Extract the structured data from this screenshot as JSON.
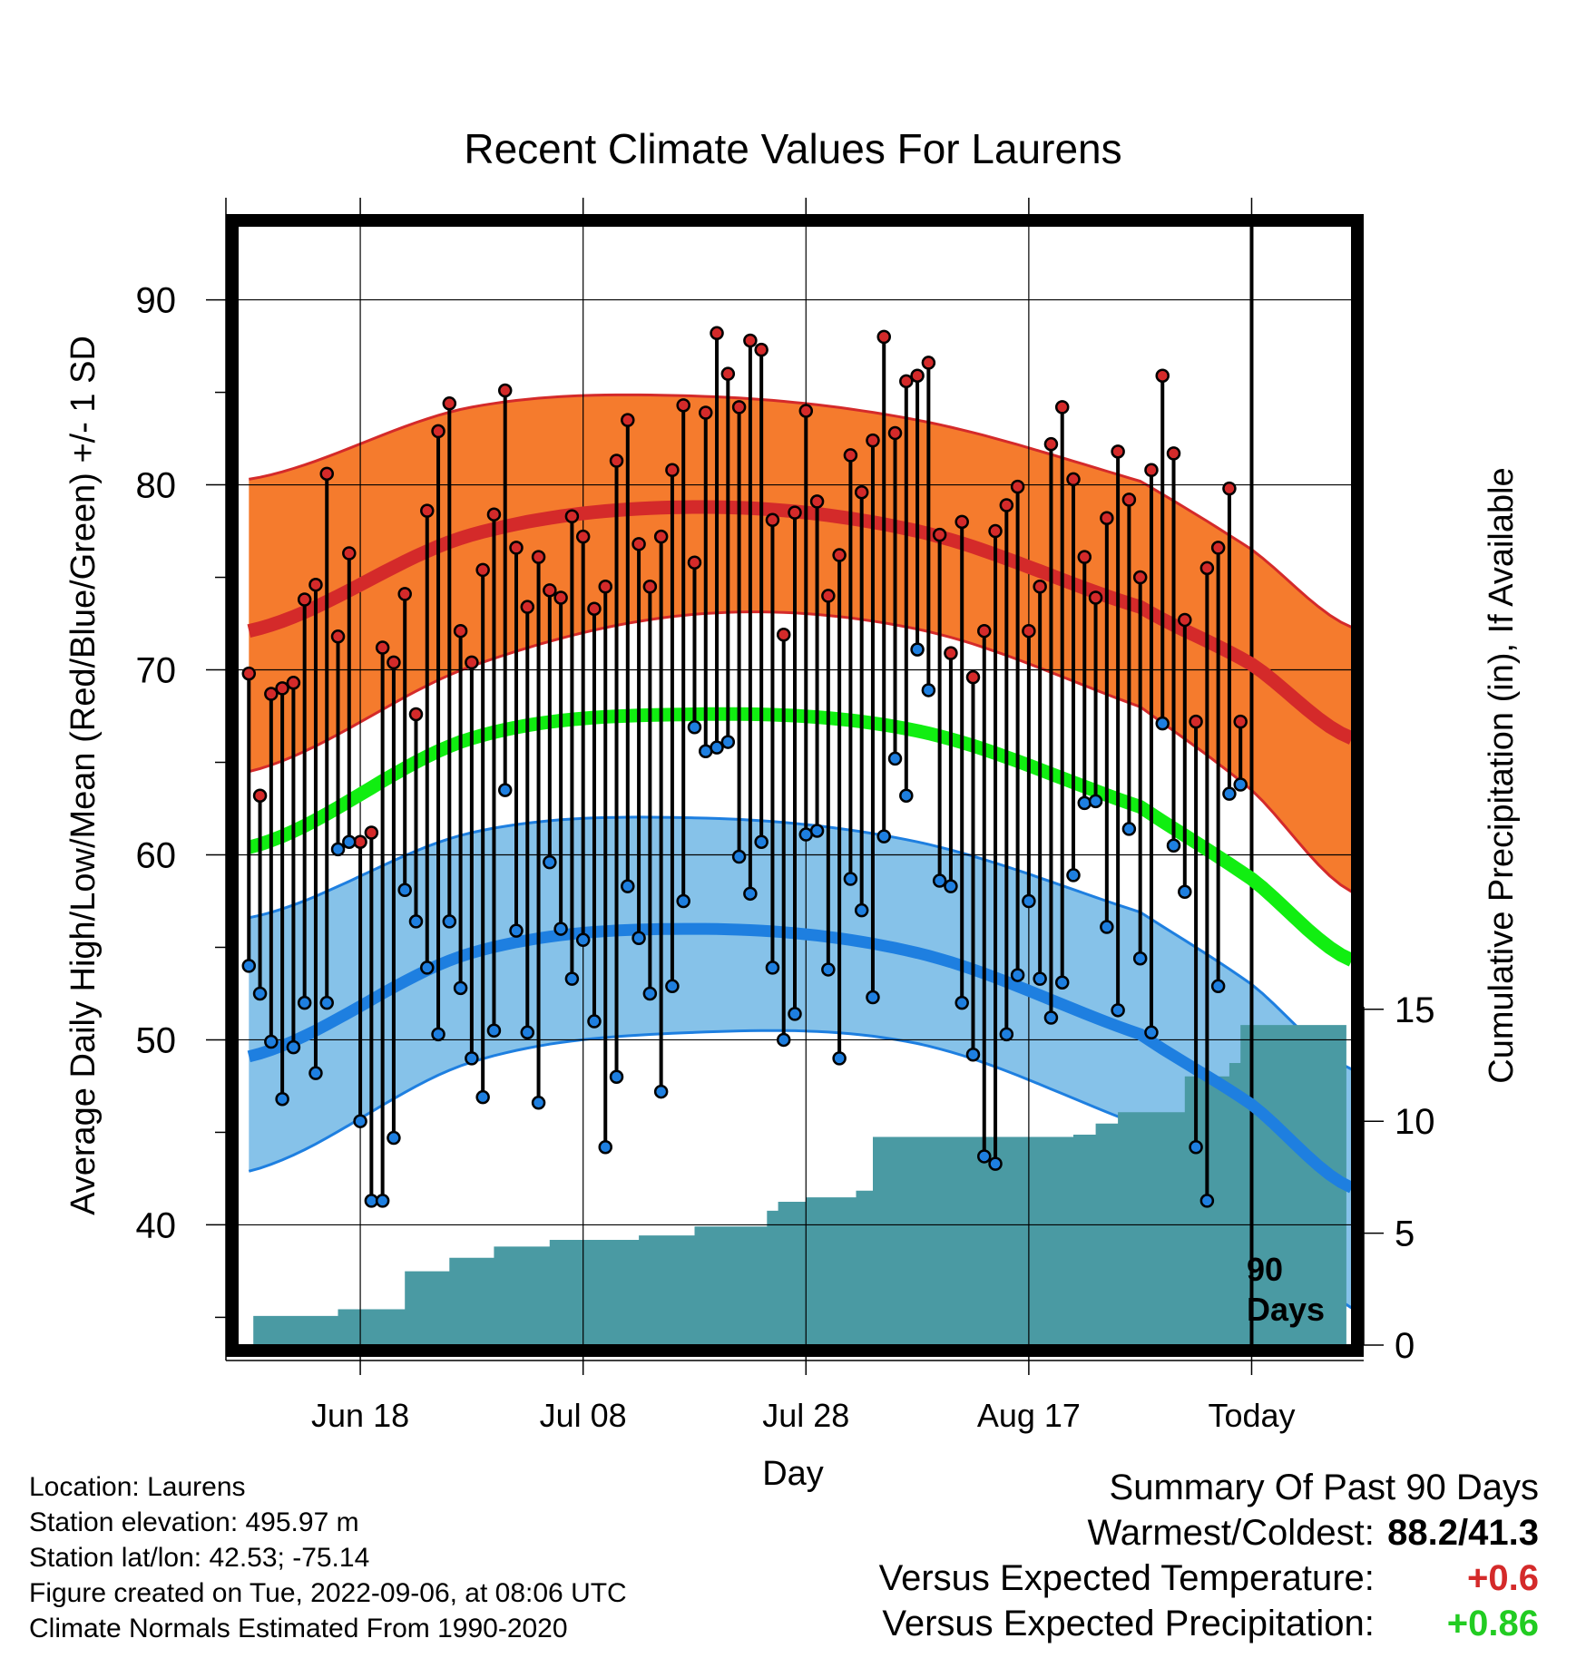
{
  "chart_data": {
    "type": "line",
    "title": "Recent Climate Values For Laurens",
    "xlabel": "Day",
    "ylabel": "Average Daily High/Low/Mean (Red/Blue/Green) +/- 1 SD",
    "y2label": "Cumulative Precipitation (in), If Available",
    "xticks": [
      {
        "label": "Jun 18",
        "day": 10
      },
      {
        "label": "Jul 08",
        "day": 30
      },
      {
        "label": "Jul 28",
        "day": 50
      },
      {
        "label": "Aug 17",
        "day": 70
      },
      {
        "label": "Today",
        "day": 90
      }
    ],
    "yticks": [
      40,
      50,
      60,
      70,
      80,
      90
    ],
    "y2ticks": [
      0,
      5,
      10,
      15
    ],
    "ylim": [
      33.5,
      94
    ],
    "y2lim": [
      0,
      50
    ],
    "xlim": [
      -1,
      99
    ],
    "grid": true,
    "today_label": "90\nDays",
    "normal_high": {
      "mean": [
        [
          0,
          72.1
        ],
        [
          20,
          77.3
        ],
        [
          40,
          78.8
        ],
        [
          60,
          77.5
        ],
        [
          80,
          73.4
        ],
        [
          90,
          70.3
        ],
        [
          99,
          66.3
        ]
      ],
      "upper": [
        [
          0,
          80.3
        ],
        [
          20,
          84.2
        ],
        [
          40,
          84.8
        ],
        [
          60,
          83.5
        ],
        [
          80,
          80.2
        ],
        [
          90,
          76.5
        ],
        [
          99,
          72.3
        ]
      ],
      "lower": [
        [
          0,
          64.5
        ],
        [
          20,
          70.2
        ],
        [
          40,
          73.0
        ],
        [
          60,
          72.2
        ],
        [
          80,
          68.0
        ],
        [
          90,
          63.5
        ],
        [
          99,
          58.0
        ]
      ]
    },
    "normal_mean": [
      [
        0,
        60.4
      ],
      [
        20,
        66.3
      ],
      [
        40,
        67.6
      ],
      [
        60,
        66.7
      ],
      [
        80,
        62.6
      ],
      [
        90,
        58.7
      ],
      [
        99,
        54.3
      ]
    ],
    "normal_low": {
      "mean": [
        [
          0,
          49.1
        ],
        [
          20,
          54.7
        ],
        [
          40,
          56.0
        ],
        [
          60,
          54.7
        ],
        [
          80,
          50.3
        ],
        [
          90,
          46.5
        ],
        [
          99,
          42.0
        ]
      ],
      "upper": [
        [
          0,
          56.6
        ],
        [
          20,
          61.2
        ],
        [
          40,
          62.0
        ],
        [
          60,
          60.7
        ],
        [
          80,
          56.9
        ],
        [
          90,
          53.0
        ],
        [
          99,
          48.4
        ]
      ],
      "lower": [
        [
          0,
          42.9
        ],
        [
          20,
          48.8
        ],
        [
          40,
          50.4
        ],
        [
          60,
          49.8
        ],
        [
          80,
          45.4
        ],
        [
          90,
          41.0
        ],
        [
          99,
          35.5
        ]
      ]
    },
    "series": [
      {
        "name": "High",
        "color": "#d42a2a",
        "values": [
          69.8,
          63.2,
          68.7,
          69.0,
          69.3,
          73.8,
          74.6,
          80.6,
          71.8,
          76.3,
          60.7,
          61.2,
          71.2,
          70.4,
          74.1,
          67.6,
          78.6,
          82.9,
          84.4,
          72.1,
          70.4,
          75.4,
          78.4,
          85.1,
          76.6,
          73.4,
          76.1,
          74.3,
          73.9,
          78.3,
          77.2,
          73.3,
          74.5,
          81.3,
          83.5,
          76.8,
          74.5,
          77.2,
          80.8,
          84.3,
          75.8,
          83.9,
          88.2,
          86.0,
          84.2,
          87.8,
          87.3,
          78.1,
          71.9,
          78.5,
          84.0,
          79.1,
          74.0,
          76.2,
          81.6,
          79.6,
          82.4,
          88.0,
          82.8,
          85.6,
          85.9,
          86.6,
          77.3,
          70.9,
          78.0,
          69.6,
          72.1,
          77.5,
          78.9,
          79.9,
          72.1,
          74.5,
          82.2,
          84.2,
          80.3,
          76.1,
          73.9,
          78.2,
          81.8,
          79.2,
          75.0,
          80.8,
          85.9,
          81.7,
          72.7,
          67.2,
          75.5,
          76.6,
          79.8,
          67.2
        ]
      },
      {
        "name": "Low",
        "color": "#1e7fe0",
        "values": [
          54.0,
          52.5,
          49.9,
          46.8,
          49.6,
          52.0,
          48.2,
          52.0,
          60.3,
          60.7,
          45.6,
          41.3,
          41.3,
          44.7,
          58.1,
          56.4,
          53.9,
          50.3,
          56.4,
          52.8,
          49.0,
          46.9,
          50.5,
          63.5,
          55.9,
          50.4,
          46.6,
          59.6,
          56.0,
          53.3,
          55.4,
          51.0,
          44.2,
          48.0,
          58.3,
          55.5,
          52.5,
          47.2,
          52.9,
          57.5,
          66.9,
          65.6,
          65.8,
          66.1,
          59.9,
          57.9,
          60.7,
          53.9,
          50.0,
          51.4,
          61.1,
          61.3,
          53.8,
          49.0,
          58.7,
          57.0,
          52.3,
          61.0,
          65.2,
          63.2,
          71.1,
          68.9,
          58.6,
          58.3,
          52.0,
          49.2,
          43.7,
          43.3,
          50.3,
          53.5,
          57.5,
          53.3,
          51.2,
          53.1,
          58.9,
          62.8,
          62.9,
          56.1,
          51.6,
          61.4,
          54.4,
          50.4,
          67.1,
          60.5,
          58.0,
          44.2,
          41.3,
          52.9,
          63.3,
          63.8
        ]
      }
    ],
    "precip_steps": [
      {
        "day": -0.5,
        "value": 0
      },
      {
        "day": 0.4,
        "value": 1.3
      },
      {
        "day": 8.0,
        "value": 1.6
      },
      {
        "day": 14.0,
        "value": 3.3
      },
      {
        "day": 18.0,
        "value": 3.9
      },
      {
        "day": 22.0,
        "value": 4.4
      },
      {
        "day": 27.0,
        "value": 4.7
      },
      {
        "day": 35.0,
        "value": 4.9
      },
      {
        "day": 40.0,
        "value": 5.3
      },
      {
        "day": 46.5,
        "value": 6.0
      },
      {
        "day": 47.5,
        "value": 6.4
      },
      {
        "day": 50.0,
        "value": 6.6
      },
      {
        "day": 54.5,
        "value": 6.9
      },
      {
        "day": 56.0,
        "value": 9.3
      },
      {
        "day": 74.0,
        "value": 9.4
      },
      {
        "day": 76.0,
        "value": 9.9
      },
      {
        "day": 78.0,
        "value": 10.4
      },
      {
        "day": 84.0,
        "value": 12.0
      },
      {
        "day": 88.0,
        "value": 12.6
      },
      {
        "day": 89.0,
        "value": 14.3
      },
      {
        "day": 98.5,
        "value": 14.3
      }
    ]
  },
  "footer": {
    "location": "Location: Laurens",
    "elevation": "Station elevation: 495.97 m",
    "latlon": "Station lat/lon: 42.53; -75.14",
    "created": "Figure created on Tue, 2022-09-06, at 08:06 UTC",
    "normals": "Climate Normals Estimated From 1990-2020"
  },
  "summary": {
    "heading": "Summary Of Past 90 Days",
    "warmest_label": "Warmest/Coldest:",
    "warmest_value": "88.2/41.3",
    "temp_label": "Versus Expected Temperature:",
    "temp_value": "+0.6",
    "temp_color": "#d42a2a",
    "precip_label": "Versus Expected Precipitation:",
    "precip_value": "+0.86",
    "precip_color": "#22cc22"
  },
  "colors": {
    "high_band": "#f57b2d",
    "high_line": "#d42a2a",
    "mean_line": "#11ee11",
    "low_band": "#86c2e9",
    "low_line": "#1e7fe0",
    "precip_fill": "#4a9aa3"
  }
}
